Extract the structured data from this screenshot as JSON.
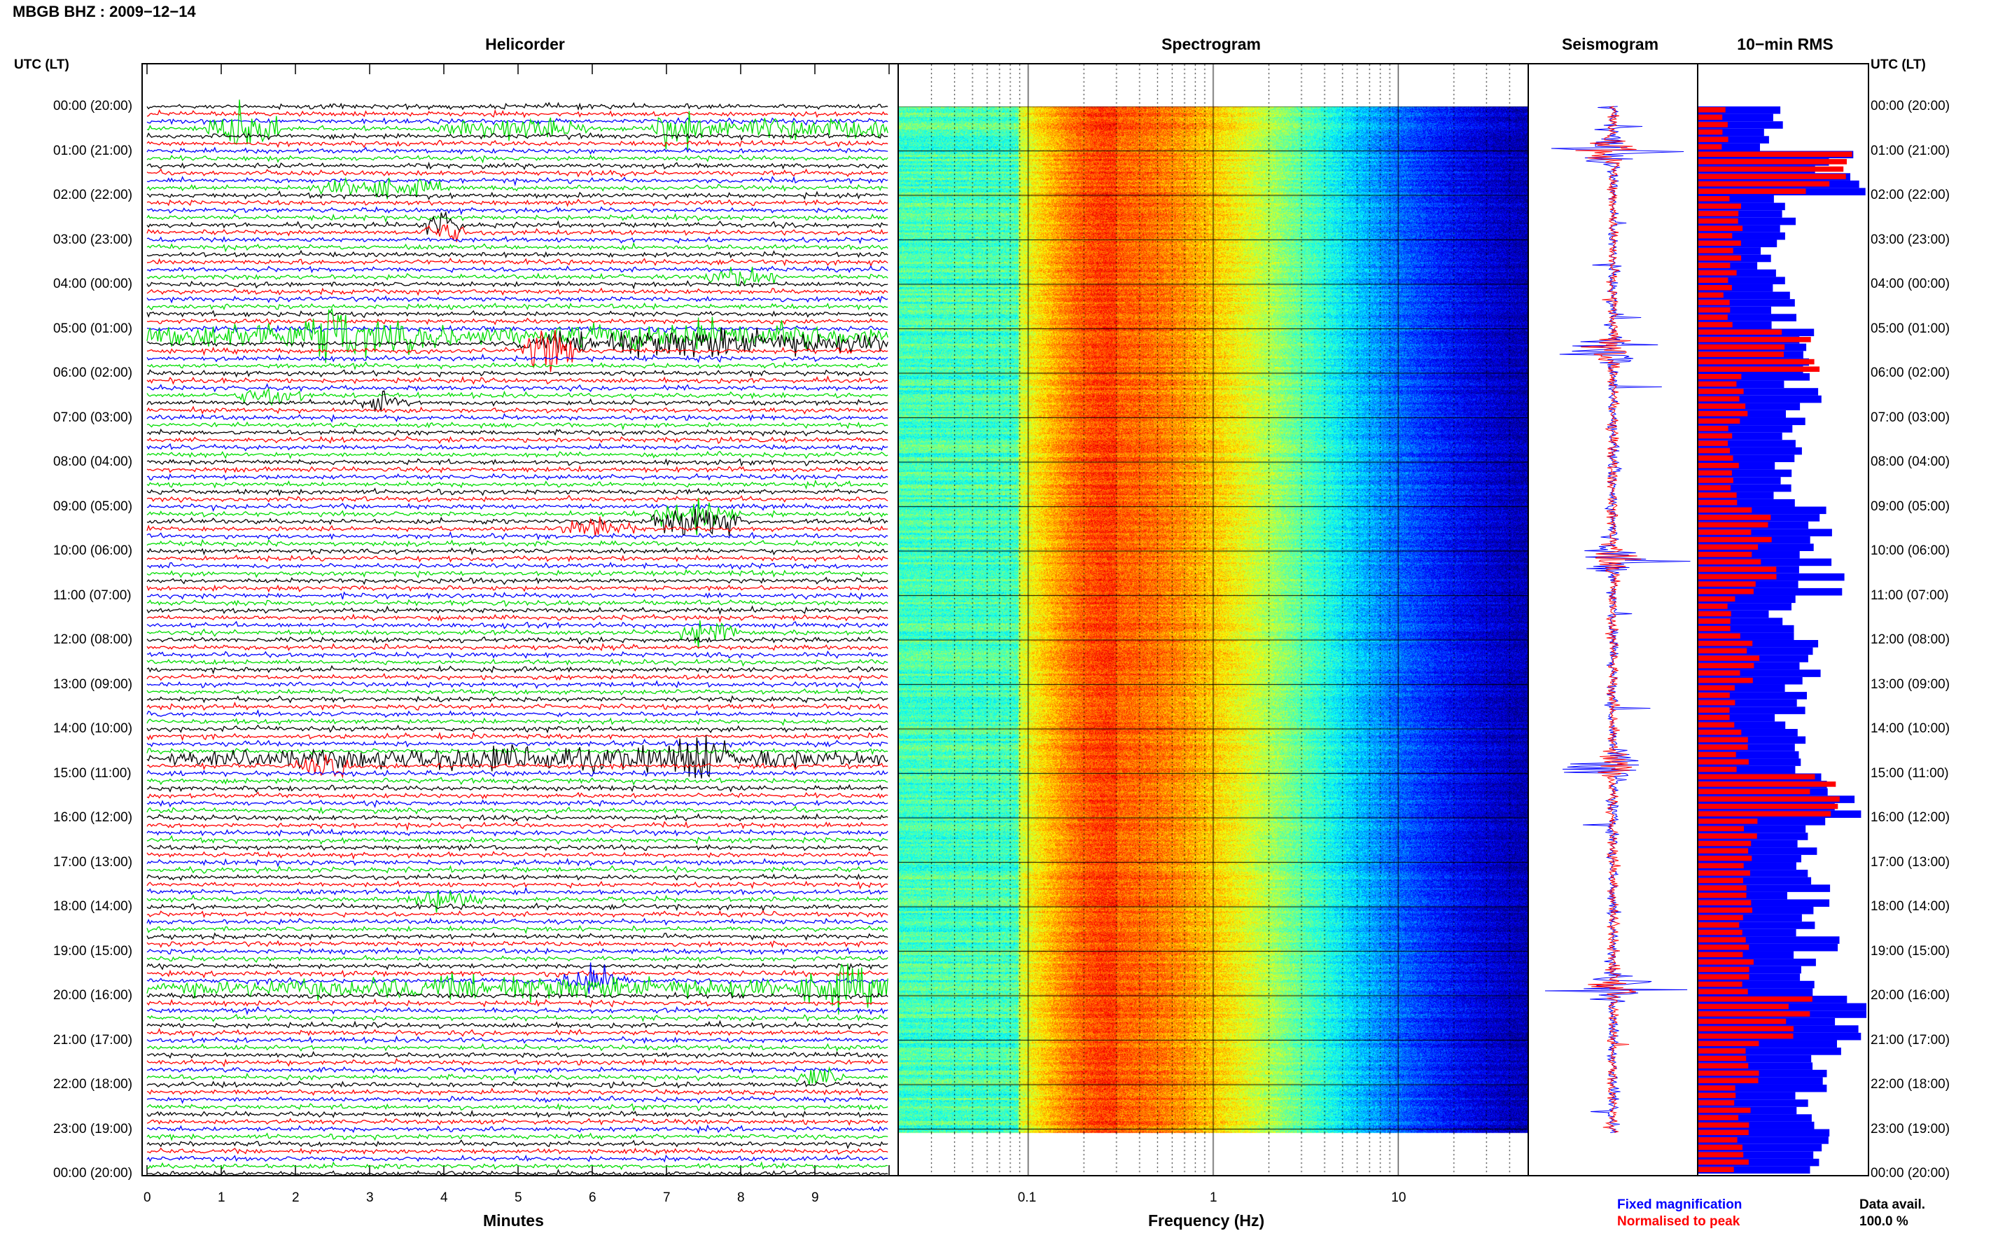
{
  "header": {
    "title": "MBGB BHZ : 2009−12−14",
    "utc_label_left": "UTC (LT)",
    "utc_label_right": "UTC (LT)"
  },
  "panels": {
    "helicorder": "Helicorder",
    "spectrogram": "Spectrogram",
    "seismogram": "Seismogram",
    "rms": "10−min RMS"
  },
  "hour_labels": [
    "00:00 (20:00)",
    "01:00 (21:00)",
    "02:00 (22:00)",
    "03:00 (23:00)",
    "04:00 (00:00)",
    "05:00 (01:00)",
    "06:00 (02:00)",
    "07:00 (03:00)",
    "08:00 (04:00)",
    "09:00 (05:00)",
    "10:00 (06:00)",
    "11:00 (07:00)",
    "12:00 (08:00)",
    "13:00 (09:00)",
    "14:00 (10:00)",
    "15:00 (11:00)",
    "16:00 (12:00)",
    "17:00 (13:00)",
    "18:00 (14:00)",
    "19:00 (15:00)",
    "20:00 (16:00)",
    "21:00 (17:00)",
    "22:00 (18:00)",
    "23:00 (19:00)",
    "00:00 (20:00)"
  ],
  "footer": {
    "legend_fixed": "Fixed magnification",
    "legend_normalised": "Normalised to peak",
    "data_avail_label": "Data avail.",
    "data_avail_value": "100.0 %"
  },
  "colors": {
    "trace_cycle": [
      "#000000",
      "#ff0000",
      "#0000ff",
      "#00dd00"
    ],
    "fixed": "#0000ff",
    "normalised": "#ff0000"
  },
  "chart_data": [
    {
      "type": "line",
      "name": "helicorder",
      "title": "Helicorder",
      "xlabel": "Minutes",
      "ylabel": "UTC (LT)",
      "xlim": [
        0,
        10
      ],
      "x_ticks": [
        0,
        1,
        2,
        3,
        4,
        5,
        6,
        7,
        8,
        9
      ],
      "traces_per_hour": 6,
      "hours": 24,
      "events": [
        {
          "hour": 0.55,
          "minute_start": 0.8,
          "minute_end": 1.8,
          "amp": 3.2
        },
        {
          "hour": 0.5,
          "minute_start": 3.8,
          "minute_end": 6.0,
          "amp": 1.4
        },
        {
          "hour": 0.5,
          "minute_start": 6.8,
          "minute_end": 7.5,
          "amp": 3.0
        },
        {
          "hour": 0.45,
          "minute_start": 7.5,
          "minute_end": 10.0,
          "amp": 1.6
        },
        {
          "hour": 1.9,
          "minute_start": 2.2,
          "minute_end": 4.0,
          "amp": 1.2
        },
        {
          "hour": 2.75,
          "minute_start": 3.7,
          "minute_end": 4.3,
          "amp": 1.6
        },
        {
          "hour": 3.8,
          "minute_start": 7.5,
          "minute_end": 8.5,
          "amp": 1.3
        },
        {
          "hour": 5.2,
          "minute_start": 0.0,
          "minute_end": 5.0,
          "amp": 2.2
        },
        {
          "hour": 5.2,
          "minute_start": 2.2,
          "minute_end": 2.8,
          "amp": 3.0
        },
        {
          "hour": 5.25,
          "minute_start": 5.0,
          "minute_end": 10.0,
          "amp": 2.0
        },
        {
          "hour": 5.45,
          "minute_start": 5.0,
          "minute_end": 5.8,
          "amp": 3.0
        },
        {
          "hour": 6.55,
          "minute_start": 1.2,
          "minute_end": 2.1,
          "amp": 1.3
        },
        {
          "hour": 6.6,
          "minute_start": 2.8,
          "minute_end": 3.5,
          "amp": 1.3
        },
        {
          "hour": 9.25,
          "minute_start": 6.8,
          "minute_end": 8.0,
          "amp": 2.6
        },
        {
          "hour": 9.5,
          "minute_start": 5.6,
          "minute_end": 6.6,
          "amp": 1.5
        },
        {
          "hour": 11.8,
          "minute_start": 7.2,
          "minute_end": 8.0,
          "amp": 2.0
        },
        {
          "hour": 14.6,
          "minute_start": 0.3,
          "minute_end": 10.0,
          "amp": 1.6
        },
        {
          "hour": 14.6,
          "minute_start": 7.0,
          "minute_end": 7.8,
          "amp": 2.6
        },
        {
          "hour": 14.9,
          "minute_start": 2.0,
          "minute_end": 2.8,
          "amp": 1.6
        },
        {
          "hour": 17.8,
          "minute_start": 3.5,
          "minute_end": 4.6,
          "amp": 1.4
        },
        {
          "hour": 19.7,
          "minute_start": 5.5,
          "minute_end": 6.5,
          "amp": 2.0
        },
        {
          "hour": 19.9,
          "minute_start": 0.0,
          "minute_end": 10.0,
          "amp": 1.5
        },
        {
          "hour": 19.9,
          "minute_start": 8.8,
          "minute_end": 10.0,
          "amp": 2.2
        },
        {
          "hour": 21.8,
          "minute_start": 8.7,
          "minute_end": 9.4,
          "amp": 1.2
        }
      ]
    },
    {
      "type": "heatmap",
      "name": "spectrogram",
      "title": "Spectrogram",
      "xlabel": "Frequency (Hz)",
      "x_scale": "log",
      "xlim": [
        0.02,
        50
      ],
      "x_ticks": [
        0.1,
        1,
        10
      ],
      "x_tick_labels": [
        "0.1",
        "1",
        "10"
      ],
      "peak_frequency_hz": 0.3,
      "ylim_hours": [
        0,
        24
      ]
    },
    {
      "type": "line",
      "name": "seismogram",
      "title": "Seismogram",
      "ylim_hours": [
        0,
        24
      ],
      "bursts_hours": [
        1.0,
        5.5,
        10.2,
        14.8,
        19.8
      ]
    },
    {
      "type": "bar",
      "name": "rms",
      "title": "10−min RMS",
      "orientation": "horizontal",
      "bins": 144,
      "ylim_hours": [
        0,
        24
      ],
      "series": [
        {
          "name": "Fixed magnification"
        },
        {
          "name": "Normalised to peak"
        }
      ],
      "fixed_hourly_level": [
        0.5,
        0.95,
        0.55,
        0.5,
        0.6,
        0.75,
        0.7,
        0.65,
        0.6,
        0.8,
        0.85,
        0.6,
        0.75,
        0.65,
        0.65,
        0.95,
        0.8,
        0.75,
        0.8,
        0.75,
        1.0,
        0.85,
        0.8,
        0.8
      ],
      "normalised_hourly_level": [
        0.2,
        0.9,
        0.25,
        0.25,
        0.2,
        0.7,
        0.3,
        0.25,
        0.25,
        0.45,
        0.45,
        0.25,
        0.35,
        0.25,
        0.3,
        0.8,
        0.35,
        0.3,
        0.35,
        0.35,
        0.65,
        0.35,
        0.3,
        0.3
      ]
    }
  ]
}
